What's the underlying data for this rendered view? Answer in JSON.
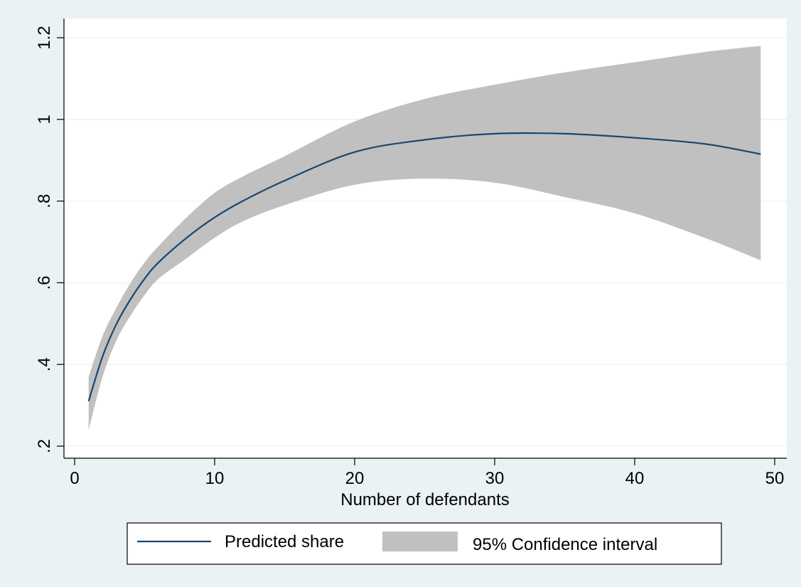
{
  "chart_data": {
    "type": "line",
    "title": "",
    "xlabel": "Number of defendants",
    "ylabel": "",
    "xlim": [
      0,
      50
    ],
    "ylim": [
      0.2,
      1.2
    ],
    "xticks": [
      0,
      10,
      20,
      30,
      40,
      50
    ],
    "xtick_labels": [
      "0",
      "10",
      "20",
      "30",
      "40",
      "50"
    ],
    "yticks": [
      0.2,
      0.4,
      0.6,
      0.8,
      1.0,
      1.2
    ],
    "ytick_labels": [
      ".2",
      ".4",
      ".6",
      ".8",
      "1",
      "1.2"
    ],
    "grid": "horizontal",
    "legend_position": "bottom",
    "colors": {
      "page_background": "#eaf2f3",
      "plot_background": "#ffffff",
      "grid": "#eaf2f3",
      "line": "#1a476f",
      "band": "#c0c0c0"
    },
    "x": [
      1,
      2,
      3,
      4,
      5,
      6,
      8,
      10,
      12,
      15,
      20,
      25,
      30,
      35,
      40,
      45,
      49
    ],
    "series": [
      {
        "name": "Predicted share",
        "kind": "line",
        "values": [
          0.31,
          0.42,
          0.5,
          0.56,
          0.61,
          0.65,
          0.71,
          0.76,
          0.8,
          0.85,
          0.92,
          0.95,
          0.965,
          0.965,
          0.955,
          0.94,
          0.915
        ]
      },
      {
        "name": "95% Confidence interval",
        "kind": "band",
        "lower": [
          0.24,
          0.37,
          0.46,
          0.52,
          0.57,
          0.61,
          0.66,
          0.71,
          0.75,
          0.79,
          0.84,
          0.855,
          0.845,
          0.81,
          0.77,
          0.71,
          0.655
        ],
        "upper": [
          0.37,
          0.47,
          0.54,
          0.6,
          0.65,
          0.69,
          0.76,
          0.82,
          0.86,
          0.91,
          0.995,
          1.05,
          1.085,
          1.115,
          1.14,
          1.165,
          1.18
        ]
      }
    ]
  }
}
